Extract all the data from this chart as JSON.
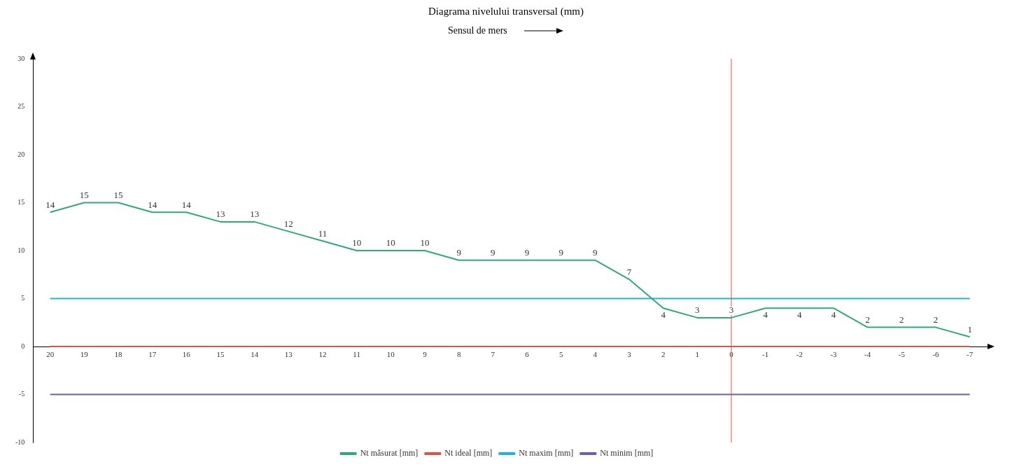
{
  "chart_data": {
    "type": "line",
    "title": "Diagrama nivelului transversal (mm)",
    "subtitle": "Sensul de mers",
    "categories": [
      "20",
      "19",
      "18",
      "17",
      "16",
      "15",
      "14",
      "13",
      "12",
      "11",
      "10",
      "9",
      "8",
      "7",
      "6",
      "5",
      "4",
      "3",
      "2",
      "1",
      "0",
      "-1",
      "-2",
      "-3",
      "-4",
      "-5",
      "-6",
      "-7"
    ],
    "series": [
      {
        "name": "Nt măsurat [mm]",
        "color": "#2eaa7a",
        "values": [
          14,
          15,
          15,
          14,
          14,
          13,
          13,
          12,
          11,
          10,
          10,
          10,
          9,
          9,
          9,
          9,
          9,
          7,
          4,
          3,
          3,
          4,
          4,
          4,
          2,
          2,
          2,
          1
        ],
        "value_labels": [
          "14",
          "15",
          "15",
          "14",
          "14",
          "13",
          "13",
          "12",
          "11",
          "10",
          "10",
          "10",
          "9",
          "9",
          "9",
          "9",
          "9",
          "7",
          "4",
          "3",
          "3",
          "4",
          "4",
          "4",
          "2",
          "2",
          "2",
          "1"
        ]
      },
      {
        "name": "Nt ideal [mm]",
        "color": "#d9534f",
        "values": [
          0,
          0,
          0,
          0,
          0,
          0,
          0,
          0,
          0,
          0,
          0,
          0,
          0,
          0,
          0,
          0,
          0,
          0,
          0,
          0,
          0,
          0,
          0,
          0,
          0,
          0,
          0,
          0
        ]
      },
      {
        "name": "Nt maxim [mm]",
        "color": "#1fb5d6",
        "values": [
          5,
          5,
          5,
          5,
          5,
          5,
          5,
          5,
          5,
          5,
          5,
          5,
          5,
          5,
          5,
          5,
          5,
          5,
          5,
          5,
          5,
          5,
          5,
          5,
          5,
          5,
          5,
          5
        ]
      },
      {
        "name": "Nt minim [mm]",
        "color": "#6a5fa8",
        "values": [
          -5,
          -5,
          -5,
          -5,
          -5,
          -5,
          -5,
          -5,
          -5,
          -5,
          -5,
          -5,
          -5,
          -5,
          -5,
          -5,
          -5,
          -5,
          -5,
          -5,
          -5,
          -5,
          -5,
          -5,
          -5,
          -5,
          -5,
          -5
        ]
      }
    ],
    "ref_lines": [
      {
        "axis": "x",
        "value": "0",
        "color": "#d9534f"
      }
    ],
    "ylim": [
      -10,
      30
    ],
    "yticks": [
      -10,
      -5,
      0,
      5,
      10,
      15,
      20,
      25,
      30
    ],
    "grid": false,
    "legend": "bottom",
    "marker": "none",
    "line_style": "solid"
  }
}
